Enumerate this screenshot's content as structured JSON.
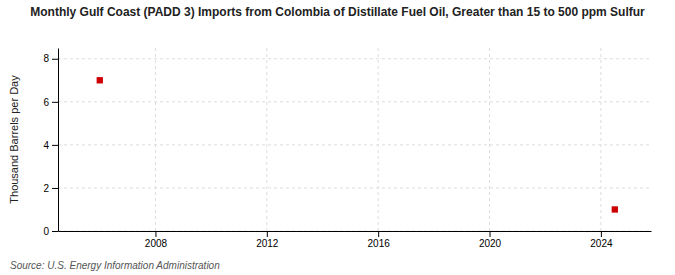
{
  "chart_data": {
    "type": "scatter",
    "title": "Monthly Gulf Coast (PADD 3) Imports from Colombia of Distillate Fuel Oil, Greater than 15 to 500 ppm Sulfur",
    "ylabel": "Thousand Barrels per Day",
    "source": "Source: U.S. Energy Information Administration",
    "x": [
      2006.0,
      2024.5
    ],
    "values": [
      7.0,
      1.0
    ],
    "color": "#cc0000",
    "marker": "square",
    "xlim": [
      2004.5,
      2025.8
    ],
    "ylim": [
      0,
      8.5
    ],
    "xticks": [
      2008,
      2012,
      2016,
      2020,
      2024
    ],
    "yticks": [
      0,
      2,
      4,
      6,
      8
    ],
    "grid": true
  }
}
